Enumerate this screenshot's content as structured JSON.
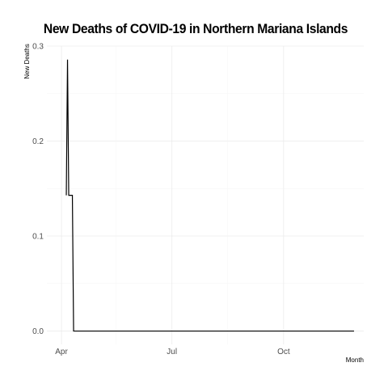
{
  "chart_data": {
    "type": "line",
    "title": "New Deaths of COVID-19 in Northern Mariana Islands",
    "xlabel": "Month",
    "ylabel": "New Deaths",
    "x_tick_labels": [
      {
        "date": "2020-04-01",
        "label": "Apr"
      },
      {
        "date": "2020-07-01",
        "label": "Jul"
      },
      {
        "date": "2020-10-01",
        "label": "Oct"
      }
    ],
    "y_ticks": [
      0.0,
      0.1,
      0.2,
      0.3
    ],
    "y_tick_labels": [
      "0.0",
      "0.1",
      "0.2",
      "0.3"
    ],
    "xlim": [
      "2020-03-20",
      "2020-12-06"
    ],
    "ylim": [
      -0.014,
      0.3
    ],
    "grid": true,
    "series": [
      {
        "color": "#000000",
        "points": [
          {
            "x": "2020-04-05",
            "y": 0.1429
          },
          {
            "x": "2020-04-06",
            "y": 0.2857
          },
          {
            "x": "2020-04-07",
            "y": 0.1429
          },
          {
            "x": "2020-04-10",
            "y": 0.1429
          },
          {
            "x": "2020-04-11",
            "y": 0.0
          },
          {
            "x": "2020-11-28",
            "y": 0.0
          }
        ]
      }
    ]
  }
}
